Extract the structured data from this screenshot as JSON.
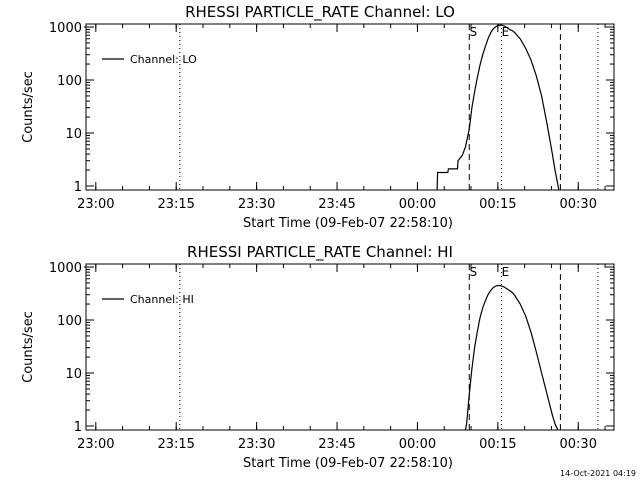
{
  "footer": {
    "timestamp": "14-Oct-2021 04:19"
  },
  "chart_data": [
    {
      "type": "line",
      "title": "RHESSI PARTICLE_RATE Channel: LO",
      "xlabel": "Start Time (09-Feb-07 22:58:10)",
      "ylabel": "Counts/sec",
      "y_scale": "log",
      "x_tick_labels": [
        "23:00",
        "23:15",
        "23:30",
        "23:45",
        "00:00",
        "00:15",
        "00:30"
      ],
      "y_tick_labels": [
        "1",
        "10",
        "100",
        "1000"
      ],
      "legend": {
        "position": "top-left",
        "entries": [
          "Channel: LO"
        ]
      },
      "markers": [
        {
          "label": "S",
          "time_offset_min": 71.5,
          "style": "dashed"
        },
        {
          "label": "E",
          "time_offset_min": 77.5,
          "style": "dotted"
        }
      ],
      "vertical_lines": [
        {
          "time_offset_min": 17.5,
          "style": "dotted"
        },
        {
          "time_offset_min": 88.5,
          "style": "dashed"
        },
        {
          "time_offset_min": 95.5,
          "style": "dotted"
        }
      ],
      "series": [
        {
          "name": "Channel: LO",
          "x_min": [
            65.5,
            65.6,
            67.5,
            67.6,
            69.3,
            69.4,
            70.2,
            70.8,
            71.5,
            72.0,
            72.5,
            73.0,
            73.5,
            74.0,
            74.5,
            75.0,
            75.5,
            76.0,
            76.5,
            77.0,
            77.5,
            78.0,
            78.5,
            79.0,
            79.5,
            80.0,
            81.0,
            82.0,
            83.0,
            84.0,
            85.0,
            86.0,
            87.0,
            87.5,
            88.0,
            88.2
          ],
          "y": [
            0.8,
            1.8,
            1.8,
            2.1,
            2.1,
            3.0,
            3.8,
            5.5,
            12,
            30,
            60,
            110,
            190,
            300,
            430,
            600,
            780,
            930,
            1020,
            1070,
            1080,
            1050,
            980,
            900,
            850,
            780,
            600,
            400,
            240,
            120,
            50,
            15,
            4,
            2,
            1.1,
            0.8
          ]
        }
      ]
    },
    {
      "type": "line",
      "title": "RHESSI PARTICLE_RATE Channel: HI",
      "xlabel": "Start Time (09-Feb-07 22:58:10)",
      "ylabel": "Counts/sec",
      "y_scale": "log",
      "x_tick_labels": [
        "23:00",
        "23:15",
        "23:30",
        "23:45",
        "00:00",
        "00:15",
        "00:30"
      ],
      "y_tick_labels": [
        "1",
        "10",
        "100",
        "1000"
      ],
      "legend": {
        "position": "top-left",
        "entries": [
          "Channel: HI"
        ]
      },
      "markers": [
        {
          "label": "S",
          "time_offset_min": 71.5,
          "style": "dashed"
        },
        {
          "label": "E",
          "time_offset_min": 77.5,
          "style": "dotted"
        }
      ],
      "vertical_lines": [
        {
          "time_offset_min": 17.5,
          "style": "dotted"
        },
        {
          "time_offset_min": 88.5,
          "style": "dashed"
        },
        {
          "time_offset_min": 95.5,
          "style": "dotted"
        }
      ],
      "series": [
        {
          "name": "Channel: HI",
          "x_min": [
            70.8,
            71.0,
            71.5,
            72.0,
            72.5,
            73.0,
            73.5,
            74.0,
            74.5,
            75.0,
            75.5,
            76.0,
            76.5,
            77.0,
            77.5,
            78.0,
            78.5,
            79.0,
            79.5,
            80.0,
            81.0,
            82.0,
            83.0,
            84.0,
            85.0,
            86.0,
            87.0,
            87.5,
            88.0
          ],
          "y": [
            0.8,
            1.1,
            4,
            12,
            30,
            60,
            110,
            170,
            230,
            300,
            360,
            410,
            440,
            450,
            440,
            420,
            390,
            360,
            330,
            290,
            200,
            120,
            60,
            25,
            10,
            4,
            1.6,
            1.1,
            0.8
          ]
        }
      ]
    }
  ]
}
